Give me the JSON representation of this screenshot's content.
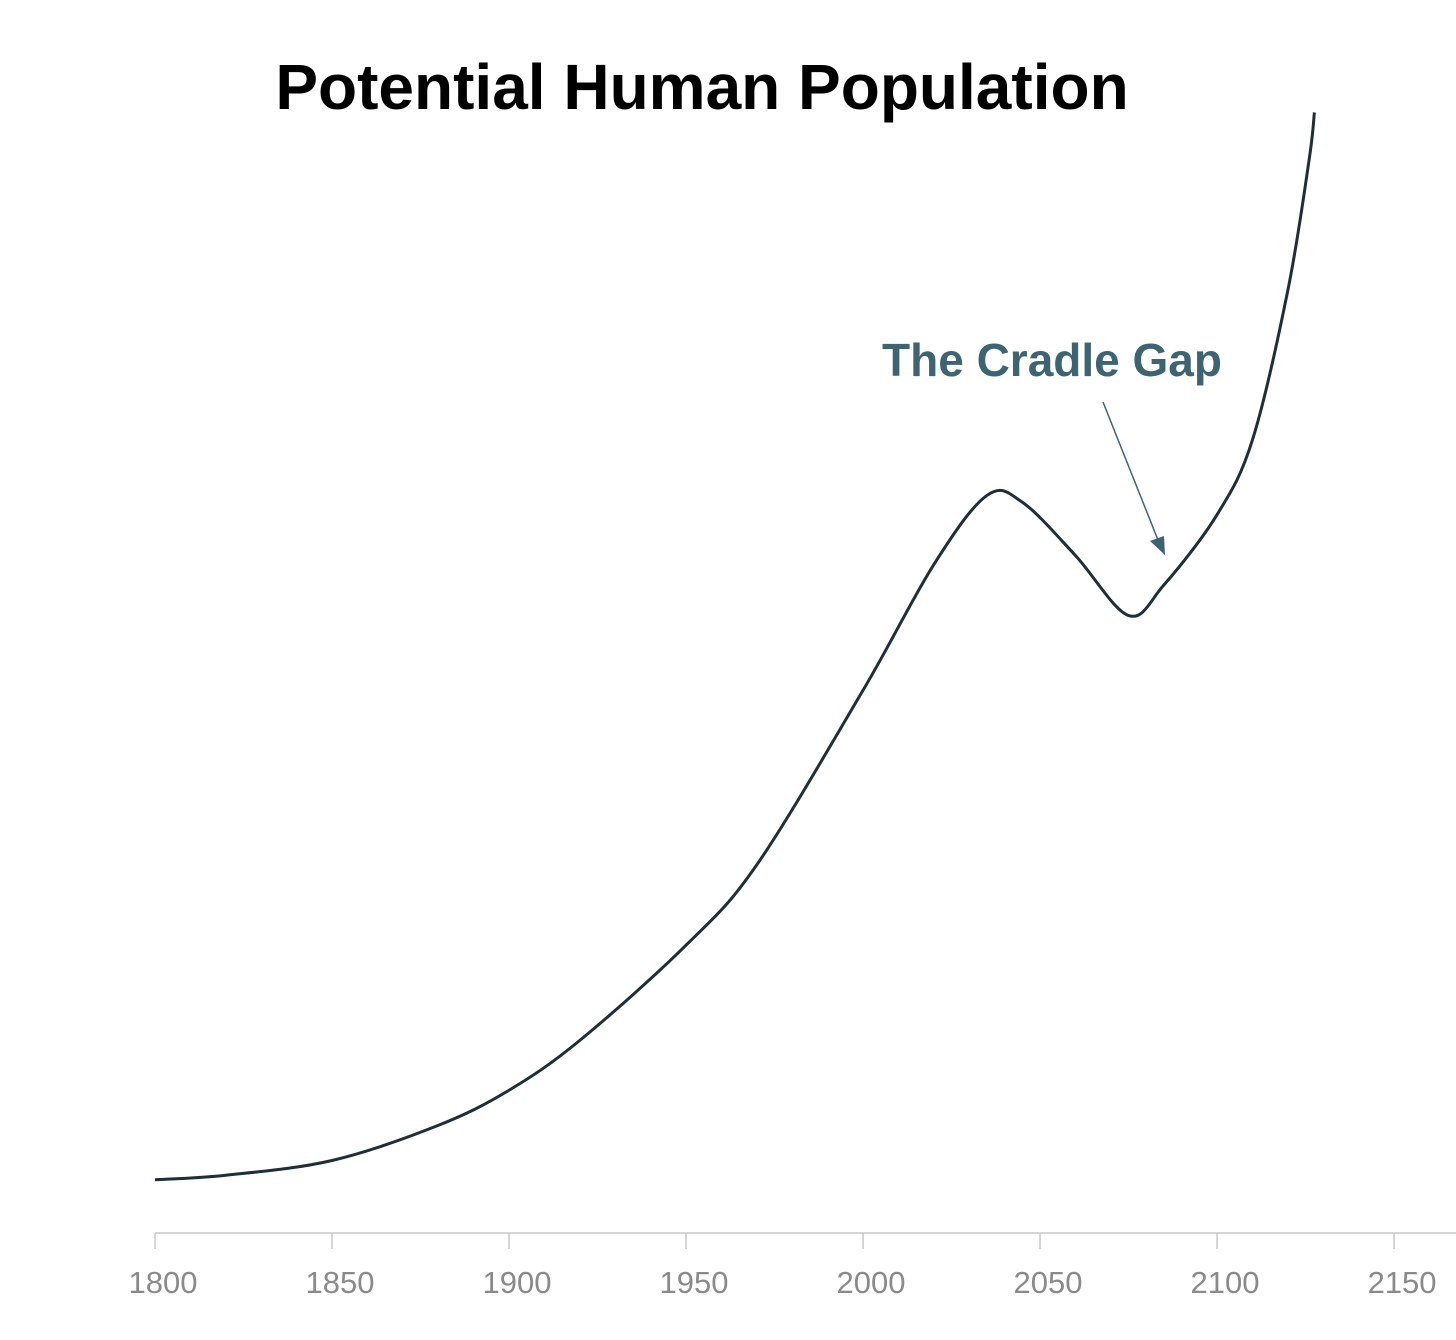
{
  "chart_data": {
    "type": "line",
    "title": "Potential Human Population",
    "annotation": "The Cradle Gap",
    "x": [
      1800,
      1820,
      1850,
      1880,
      1900,
      1920,
      1950,
      1970,
      2000,
      2020,
      2035,
      2045,
      2060,
      2075,
      2085,
      2100,
      2110,
      2120,
      2126,
      2127.5
    ],
    "series": [
      {
        "color": "#1f2f36",
        "values": [
          4.7,
          5.1,
          6.4,
          9.5,
          12.6,
          17.0,
          25.4,
          32.5,
          47.9,
          59.0,
          65.1,
          64.5,
          59.8,
          54.5,
          57.2,
          63.4,
          70.0,
          83.2,
          94.7,
          98.9
        ]
      }
    ],
    "xlim": [
      1800,
      2167.5
    ],
    "ylim": [
      0,
      100
    ],
    "xticks": [
      1800,
      1850,
      1900,
      1950,
      2000,
      2050,
      2100,
      2150
    ],
    "annotation_color": "#3d6470",
    "axis_color": "#c8c8c8",
    "tick_label_color": "#8a8a8a"
  }
}
